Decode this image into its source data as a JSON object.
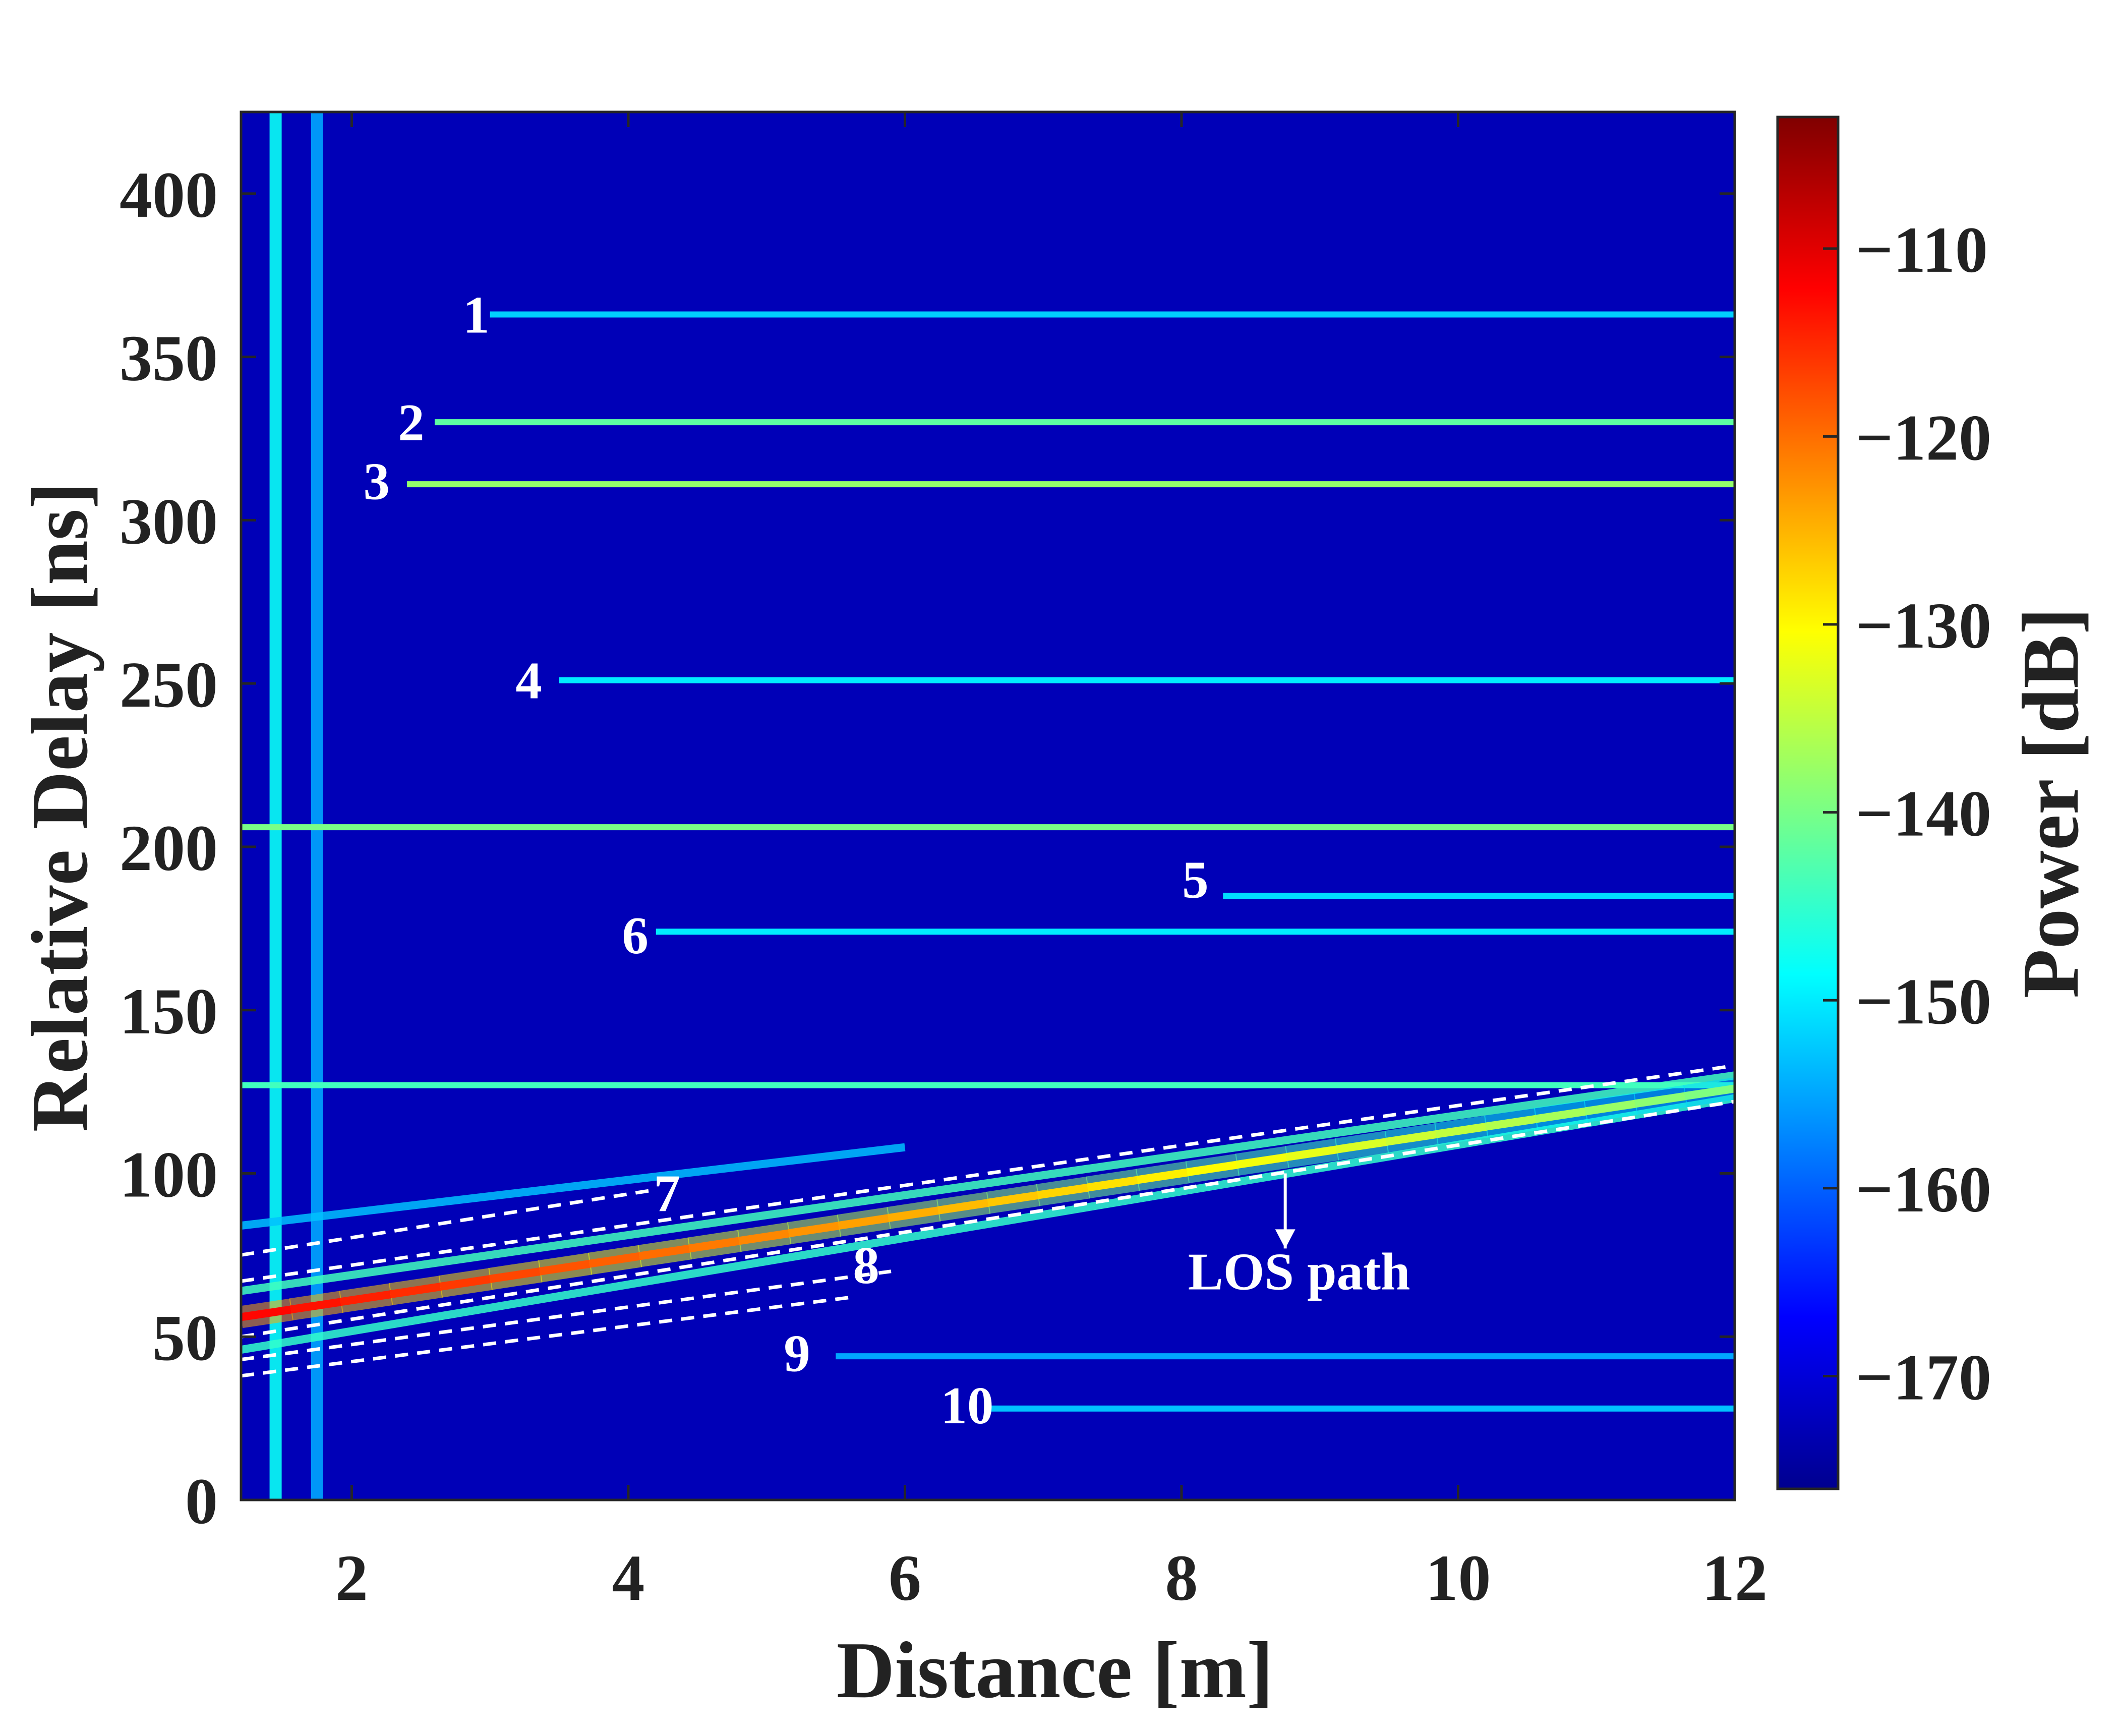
{
  "chart_data": {
    "type": "heatmap",
    "title": "",
    "xlabel": "Distance [m]",
    "ylabel": "Relative Delay [ns]",
    "colorbar_label": "Power [dB]",
    "colormap": "jet",
    "xlim": [
      1.2,
      12
    ],
    "ylim": [
      0,
      425
    ],
    "clim": [
      -176,
      -103
    ],
    "x_ticks": [
      2,
      4,
      6,
      8,
      10,
      12
    ],
    "y_ticks": [
      0,
      50,
      100,
      150,
      200,
      250,
      300,
      350,
      400
    ],
    "colorbar_ticks": [
      -110,
      -120,
      -130,
      -140,
      -150,
      -160,
      -170
    ],
    "background_power": -172,
    "vertical_streaks": [
      {
        "x": 1.45,
        "power": -148
      },
      {
        "x": 1.75,
        "power": -155
      }
    ],
    "horizontal_paths": [
      {
        "delay": 363,
        "x_start": 3.0,
        "x_end": 12,
        "power": -152
      },
      {
        "delay": 330,
        "x_start": 2.6,
        "x_end": 12,
        "power": -142
      },
      {
        "delay": 311,
        "x_start": 2.4,
        "x_end": 12,
        "power": -138
      },
      {
        "delay": 251,
        "x_start": 3.5,
        "x_end": 12,
        "power": -150
      },
      {
        "delay": 206,
        "x_start": 1.2,
        "x_end": 12,
        "power": -140
      },
      {
        "delay": 185,
        "x_start": 8.3,
        "x_end": 12,
        "power": -151
      },
      {
        "delay": 174,
        "x_start": 4.2,
        "x_end": 12,
        "power": -150
      },
      {
        "delay": 127,
        "x_start": 1.2,
        "x_end": 12,
        "power": -144
      },
      {
        "delay": 44,
        "x_start": 5.5,
        "x_end": 12,
        "power": -155
      },
      {
        "delay": 28,
        "x_start": 6.6,
        "x_end": 12,
        "power": -153
      }
    ],
    "los_path": {
      "x": [
        1.2,
        12
      ],
      "delay": [
        56,
        126
      ],
      "power_start": -112,
      "power_end": -140
    },
    "side_paths": [
      {
        "x": [
          1.2,
          12
        ],
        "delay": [
          64,
          130
        ],
        "power_start": -138,
        "power_end": -150
      },
      {
        "x": [
          1.2,
          12
        ],
        "delay": [
          46,
          123
        ],
        "power_start": -140,
        "power_end": -150
      },
      {
        "x": [
          1.2,
          6.0
        ],
        "delay": [
          84,
          108
        ],
        "power_start": -150,
        "power_end": -156
      }
    ],
    "dashed_lines": [
      {
        "x": [
          1.2,
          4.2
        ],
        "delay": [
          75,
          95
        ]
      },
      {
        "x": [
          1.2,
          12
        ],
        "delay": [
          67,
          133
        ]
      },
      {
        "x": [
          1.2,
          12
        ],
        "delay": [
          50,
          122
        ]
      },
      {
        "x": [
          1.2,
          5.9
        ],
        "delay": [
          43,
          70
        ]
      },
      {
        "x": [
          1.2,
          5.6
        ],
        "delay": [
          38,
          62
        ]
      }
    ],
    "annotations": [
      {
        "text": "1",
        "x": 2.9,
        "delay": 363
      },
      {
        "text": "2",
        "x": 2.43,
        "delay": 330
      },
      {
        "text": "3",
        "x": 2.18,
        "delay": 312
      },
      {
        "text": "4",
        "x": 3.28,
        "delay": 251
      },
      {
        "text": "5",
        "x": 8.1,
        "delay": 190
      },
      {
        "text": "6",
        "x": 4.05,
        "delay": 173
      },
      {
        "text": "7",
        "x": 4.28,
        "delay": 94
      },
      {
        "text": "8",
        "x": 5.72,
        "delay": 72
      },
      {
        "text": "9",
        "x": 5.22,
        "delay": 45
      },
      {
        "text": "10",
        "x": 6.45,
        "delay": 29
      },
      {
        "text": "LOS path",
        "x": 8.85,
        "delay": 70
      }
    ],
    "los_arrow": {
      "x": 8.75,
      "delay_from": 100,
      "delay_to": 77
    }
  }
}
